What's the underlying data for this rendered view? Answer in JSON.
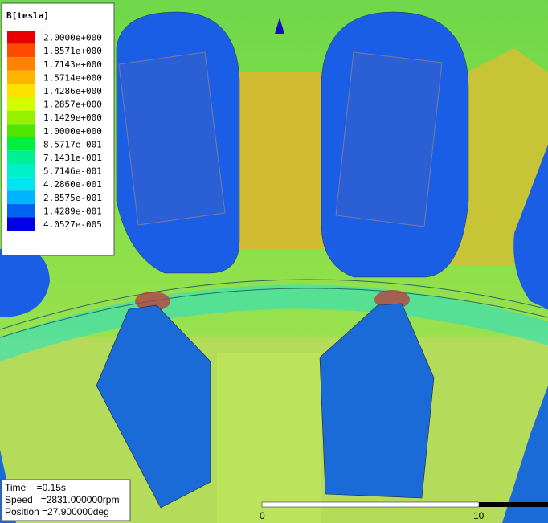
{
  "legend": {
    "title": "B[tesla]",
    "labels": [
      "2.0000e+000",
      "1.8571e+000",
      "1.7143e+000",
      "1.5714e+000",
      "1.4286e+000",
      "1.2857e+000",
      "1.1429e+000",
      "1.0000e+000",
      "8.5717e-001",
      "7.1431e-001",
      "5.7146e-001",
      "4.2860e-001",
      "2.8575e-001",
      "1.4289e-001",
      "4.0527e-005"
    ],
    "colors": [
      "#e60000",
      "#ff4a00",
      "#ff8200",
      "#ffb400",
      "#ffe100",
      "#d2ff00",
      "#96f000",
      "#50e600",
      "#00f040",
      "#00f096",
      "#00f0c8",
      "#00e6f0",
      "#00b4ff",
      "#0064f0",
      "#0000e6"
    ]
  },
  "info": {
    "lines": [
      "Time    =0.15s",
      "Speed   =2831.000000rpm",
      "Position =27.900000deg"
    ]
  },
  "scale": {
    "labels": [
      "0",
      "10"
    ]
  }
}
